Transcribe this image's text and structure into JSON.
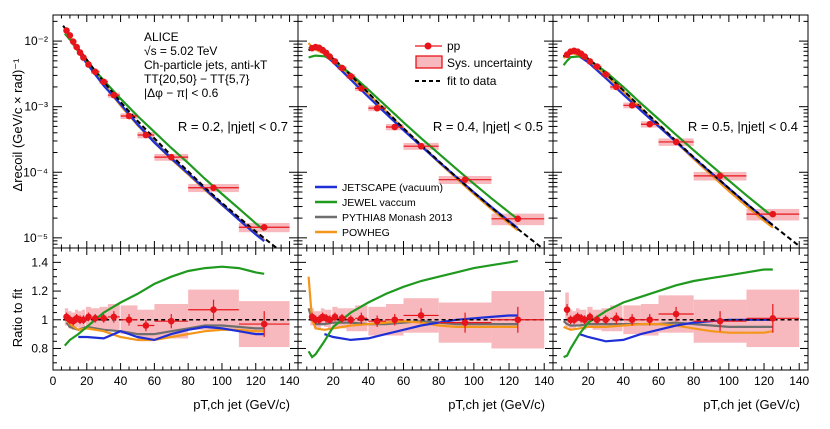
{
  "figure": {
    "info_lines": [
      "ALICE",
      "√s = 5.02 TeV",
      "Ch-particle jets, anti-kT",
      "TT{20,50} − TT{5,7}",
      "|Δφ − π| < 0.6"
    ],
    "ylabel_top": "Δrecoil (GeV/c × rad)⁻¹",
    "ylabel_bottom": "Ratio to fit",
    "xlabel": "pT,ch jet (GeV/c)"
  },
  "legend": {
    "data": "pp",
    "sys": "Sys. uncertainty",
    "fit": "fit to data",
    "jetscape": "JETSCAPE (vacuum)",
    "jewel": "JEWEL vaccum",
    "pythia": "PYTHIA8 Monash 2013",
    "powheg": "POWHEG"
  },
  "colors": {
    "data": "#e8141b",
    "sys_fill": "#f7b9bd",
    "jetscape": "#1f2fd6",
    "jewel": "#1f9a1f",
    "pythia": "#6e6e6e",
    "powheg": "#f3961a"
  },
  "chart_data": [
    {
      "type": "line",
      "panel": "R = 0.2",
      "annotation": "R = 0.2, |ηjet| < 0.7",
      "xlim": [
        0,
        145
      ],
      "ylim_log": [
        7e-06,
        0.025
      ],
      "ratio_ylim": [
        0.65,
        1.5
      ],
      "xticks": [
        0,
        20,
        40,
        60,
        80,
        100,
        120,
        140
      ],
      "yticks": [
        "10⁻⁵",
        "10⁻⁴",
        "10⁻³",
        "10⁻²"
      ],
      "ratio_yticks": [
        "0.8",
        "1",
        "1.2",
        "1.4"
      ],
      "points": {
        "x": [
          8,
          10,
          12,
          14,
          16,
          18,
          21,
          25,
          30,
          36,
          45,
          55,
          70,
          95,
          125
        ],
        "xerr": [
          1,
          1,
          1,
          1,
          1,
          1,
          1.5,
          2.5,
          2.5,
          3.5,
          5,
          5,
          10,
          15,
          15
        ],
        "y": [
          0.0145,
          0.0122,
          0.0098,
          0.0081,
          0.0067,
          0.0056,
          0.0044,
          0.0034,
          0.0024,
          0.0015,
          0.00072,
          0.00037,
          0.00017,
          5.8e-05,
          1.45e-05
        ],
        "ratio": [
          1.02,
          1.0,
          0.99,
          1.01,
          1.0,
          1.0,
          1.02,
          1.01,
          1.01,
          1.02,
          1.0,
          0.96,
          0.99,
          1.07,
          0.97
        ],
        "ratio_err": [
          0.03,
          0.03,
          0.03,
          0.03,
          0.03,
          0.03,
          0.03,
          0.03,
          0.03,
          0.04,
          0.04,
          0.04,
          0.05,
          0.07,
          0.09
        ],
        "sys": [
          0.06,
          0.06,
          0.06,
          0.06,
          0.06,
          0.07,
          0.07,
          0.07,
          0.08,
          0.09,
          0.1,
          0.11,
          0.12,
          0.14,
          0.16
        ]
      },
      "fit": {
        "x": [
          6,
          10,
          15,
          20,
          25,
          30,
          40,
          50,
          60,
          70,
          80,
          90,
          100,
          110,
          120,
          130,
          140
        ],
        "y": [
          0.0172,
          0.0123,
          0.0077,
          0.0052,
          0.0035,
          0.0024,
          0.00118,
          0.00061,
          0.00033,
          0.00018,
          0.000103,
          5.8e-05,
          3.4e-05,
          2.05e-05,
          1.25e-05,
          7.8e-06,
          4.9e-06
        ]
      },
      "models": {
        "jetscape": {
          "x": [
            15,
            20,
            30,
            40,
            50,
            60,
            70,
            80,
            90,
            100,
            110,
            120,
            125
          ],
          "ratio": [
            0.88,
            0.88,
            0.87,
            0.92,
            0.88,
            0.86,
            0.9,
            0.93,
            0.95,
            0.94,
            0.92,
            0.9,
            0.9
          ]
        },
        "jewel": {
          "x": [
            7,
            10,
            15,
            20,
            30,
            40,
            50,
            60,
            70,
            80,
            90,
            100,
            110,
            120,
            125
          ],
          "ratio": [
            0.82,
            0.86,
            0.9,
            0.95,
            1.05,
            1.12,
            1.18,
            1.25,
            1.3,
            1.34,
            1.36,
            1.37,
            1.36,
            1.33,
            1.32
          ]
        },
        "pythia": {
          "x": [
            8,
            10,
            15,
            20,
            30,
            40,
            50,
            60,
            70,
            80,
            90,
            100,
            110,
            120,
            125
          ],
          "ratio": [
            0.98,
            0.95,
            0.93,
            0.95,
            0.93,
            0.92,
            0.9,
            0.9,
            0.92,
            0.94,
            0.96,
            0.96,
            0.95,
            0.94,
            0.94
          ]
        },
        "powheg": {
          "x": [
            8,
            10,
            15,
            20,
            30,
            40,
            50,
            60,
            70,
            80,
            90,
            100,
            110,
            120,
            125
          ],
          "ratio": [
            1.0,
            0.97,
            0.93,
            0.94,
            0.92,
            0.88,
            0.86,
            0.86,
            0.88,
            0.9,
            0.92,
            0.93,
            0.93,
            0.92,
            0.92
          ]
        }
      }
    },
    {
      "type": "line",
      "panel": "R = 0.4",
      "annotation": "R = 0.4, |ηjet| < 0.5",
      "xlim": [
        0,
        145
      ],
      "ylim_log": [
        7e-06,
        0.025
      ],
      "ratio_ylim": [
        0.65,
        1.5
      ],
      "xticks": [
        0,
        20,
        40,
        60,
        80,
        100,
        120,
        140
      ],
      "points": {
        "x": [
          8,
          10,
          12,
          14,
          16,
          18,
          21,
          25,
          30,
          36,
          45,
          55,
          70,
          95,
          125
        ],
        "xerr": [
          1,
          1,
          1,
          1,
          1,
          1,
          1.5,
          2.5,
          2.5,
          3.5,
          5,
          5,
          10,
          15,
          15
        ],
        "y": [
          0.0078,
          0.0081,
          0.0079,
          0.0073,
          0.0066,
          0.0058,
          0.0049,
          0.0039,
          0.0029,
          0.0019,
          0.00095,
          0.00049,
          0.00025,
          7.7e-05,
          1.95e-05
        ],
        "ratio": [
          1.02,
          1.0,
          1.0,
          1.02,
          1.01,
          1.0,
          1.02,
          1.01,
          1.0,
          1.01,
          0.99,
          1.0,
          1.03,
          0.98,
          1.0
        ],
        "ratio_err": [
          0.03,
          0.03,
          0.03,
          0.03,
          0.03,
          0.03,
          0.03,
          0.03,
          0.03,
          0.04,
          0.04,
          0.04,
          0.05,
          0.07,
          0.09
        ],
        "sys": [
          0.06,
          0.06,
          0.06,
          0.06,
          0.06,
          0.07,
          0.07,
          0.07,
          0.08,
          0.09,
          0.1,
          0.11,
          0.12,
          0.14,
          0.2
        ]
      },
      "fit": {
        "x": [
          6,
          8,
          10,
          15,
          20,
          25,
          30,
          40,
          50,
          60,
          70,
          80,
          90,
          100,
          110,
          120,
          130,
          140
        ],
        "y": [
          0.0072,
          0.0079,
          0.0079,
          0.0069,
          0.0054,
          0.0041,
          0.003,
          0.00162,
          0.00087,
          0.00047,
          0.00026,
          0.000148,
          8.5e-05,
          4.9e-05,
          2.9e-05,
          1.75e-05,
          1.07e-05,
          6.6e-06
        ]
      },
      "models": {
        "jetscape": {
          "x": [
            15,
            20,
            30,
            40,
            50,
            60,
            70,
            80,
            90,
            100,
            110,
            120,
            125
          ],
          "ratio": [
            0.9,
            0.88,
            0.86,
            0.87,
            0.9,
            0.93,
            0.96,
            0.98,
            1.0,
            1.01,
            1.02,
            1.03,
            1.03
          ]
        },
        "jewel": {
          "x": [
            6,
            8,
            10,
            15,
            20,
            30,
            40,
            50,
            60,
            70,
            80,
            90,
            100,
            110,
            120,
            125
          ],
          "ratio": [
            0.78,
            0.74,
            0.76,
            0.85,
            0.95,
            1.05,
            1.12,
            1.18,
            1.23,
            1.27,
            1.3,
            1.33,
            1.36,
            1.38,
            1.4,
            1.41
          ]
        },
        "pythia": {
          "x": [
            6,
            8,
            10,
            15,
            20,
            30,
            40,
            50,
            60,
            70,
            80,
            90,
            100,
            110,
            120,
            125
          ],
          "ratio": [
            1.08,
            1.0,
            0.97,
            0.97,
            0.98,
            0.98,
            0.97,
            0.97,
            0.98,
            0.99,
            0.98,
            0.97,
            0.97,
            0.97,
            0.97,
            0.97
          ]
        },
        "powheg": {
          "x": [
            6,
            7,
            8,
            10,
            15,
            20,
            30,
            40,
            50,
            60,
            70,
            80,
            90,
            100,
            110,
            120,
            125
          ],
          "ratio": [
            1.3,
            1.15,
            1.0,
            0.94,
            0.93,
            0.94,
            0.96,
            0.97,
            0.98,
            0.99,
            0.98,
            0.96,
            0.95,
            0.95,
            0.95,
            0.95,
            0.95
          ]
        }
      }
    },
    {
      "type": "line",
      "panel": "R = 0.5",
      "annotation": "R = 0.5, |ηjet| < 0.4",
      "xlim": [
        0,
        145
      ],
      "ylim_log": [
        7e-06,
        0.025
      ],
      "ratio_ylim": [
        0.65,
        1.5
      ],
      "xticks": [
        0,
        20,
        40,
        60,
        80,
        100,
        120,
        140
      ],
      "points": {
        "x": [
          8,
          10,
          12,
          14,
          16,
          18,
          21,
          25,
          30,
          36,
          45,
          55,
          70,
          95,
          125
        ],
        "xerr": [
          1,
          1,
          1,
          1,
          1,
          1,
          1.5,
          2.5,
          2.5,
          3.5,
          5,
          5,
          10,
          15,
          15
        ],
        "y": [
          0.0062,
          0.0069,
          0.0071,
          0.0069,
          0.0064,
          0.0058,
          0.0049,
          0.0041,
          0.0031,
          0.002,
          0.00105,
          0.00054,
          0.00029,
          8.8e-05,
          2.3e-05
        ],
        "ratio": [
          1.07,
          1.0,
          1.0,
          1.02,
          1.01,
          1.0,
          1.02,
          1.0,
          1.0,
          1.01,
          1.0,
          1.0,
          1.04,
          0.99,
          1.01
        ],
        "ratio_err": [
          0.04,
          0.03,
          0.03,
          0.03,
          0.03,
          0.03,
          0.03,
          0.03,
          0.03,
          0.04,
          0.04,
          0.04,
          0.05,
          0.07,
          0.1
        ],
        "sys": [
          0.12,
          0.07,
          0.06,
          0.06,
          0.06,
          0.07,
          0.07,
          0.07,
          0.08,
          0.09,
          0.1,
          0.11,
          0.13,
          0.15,
          0.2
        ]
      },
      "fit": {
        "x": [
          6,
          8,
          10,
          15,
          20,
          25,
          30,
          40,
          50,
          60,
          70,
          80,
          90,
          100,
          110,
          120,
          130,
          140
        ],
        "y": [
          0.0058,
          0.0067,
          0.0071,
          0.0065,
          0.0054,
          0.0042,
          0.0032,
          0.00178,
          0.00097,
          0.00054,
          0.0003,
          0.00017,
          9.85e-05,
          5.7e-05,
          3.35e-05,
          2e-05,
          1.22e-05,
          7.5e-06
        ]
      },
      "models": {
        "jetscape": {
          "x": [
            15,
            20,
            30,
            40,
            50,
            60,
            70,
            80,
            90,
            100,
            110,
            120,
            125
          ],
          "ratio": [
            0.9,
            0.88,
            0.85,
            0.86,
            0.9,
            0.93,
            0.96,
            0.98,
            0.99,
            1.0,
            1.0,
            1.0,
            1.0
          ]
        },
        "jewel": {
          "x": [
            6,
            8,
            10,
            15,
            20,
            30,
            40,
            50,
            60,
            70,
            80,
            90,
            100,
            110,
            120,
            125
          ],
          "ratio": [
            0.74,
            0.75,
            0.8,
            0.9,
            0.98,
            1.06,
            1.12,
            1.16,
            1.2,
            1.24,
            1.27,
            1.29,
            1.31,
            1.33,
            1.35,
            1.35
          ]
        },
        "pythia": {
          "x": [
            6,
            8,
            10,
            15,
            20,
            30,
            40,
            50,
            60,
            70,
            80,
            90,
            100,
            110,
            120,
            125
          ],
          "ratio": [
            0.99,
            0.97,
            0.96,
            0.96,
            0.97,
            0.97,
            0.97,
            0.97,
            0.97,
            0.98,
            0.97,
            0.96,
            0.95,
            0.95,
            0.95,
            0.95
          ]
        },
        "powheg": {
          "x": [
            6,
            8,
            10,
            15,
            20,
            30,
            40,
            50,
            60,
            70,
            80,
            90,
            100,
            110,
            120,
            125
          ],
          "ratio": [
            0.95,
            0.94,
            0.93,
            0.94,
            0.95,
            0.95,
            0.96,
            0.97,
            0.97,
            0.96,
            0.94,
            0.92,
            0.91,
            0.91,
            0.91,
            0.92
          ]
        }
      }
    }
  ]
}
